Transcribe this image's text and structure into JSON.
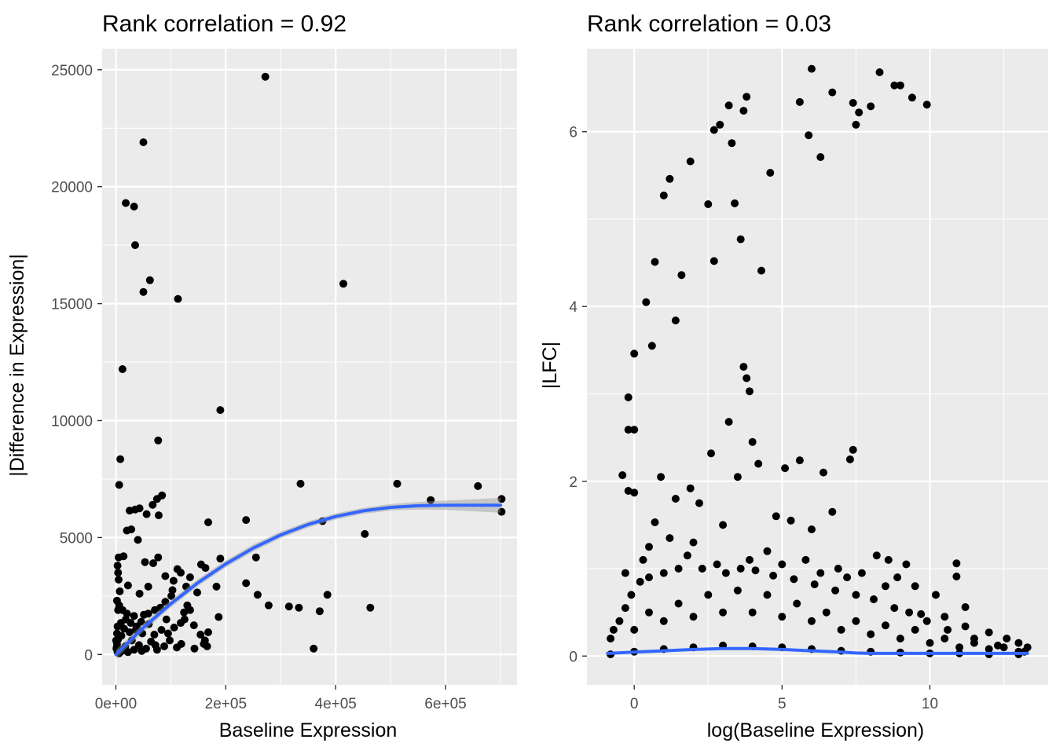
{
  "chart_data": [
    {
      "type": "scatter",
      "title": "Rank correlation = 0.92",
      "xlabel": "Baseline Expression",
      "ylabel": "|Difference in Expression|",
      "xlim": [
        -25000,
        730000
      ],
      "ylim": [
        -1300,
        25900
      ],
      "x_ticks": [
        0,
        200000,
        400000,
        600000
      ],
      "x_tick_labels": [
        "0e+00",
        "2e+05",
        "4e+05",
        "6e+05"
      ],
      "y_ticks": [
        0,
        5000,
        10000,
        15000,
        20000,
        25000
      ],
      "y_tick_labels": [
        "0",
        "5000",
        "10000",
        "15000",
        "20000",
        "25000"
      ],
      "grid": true,
      "colors": {
        "points": "#000000",
        "smooth": "#3366ff",
        "band": "#999999",
        "panel": "#ebebeb",
        "grid": "#ffffff"
      },
      "smooth": {
        "x": [
          0,
          50000,
          100000,
          150000,
          200000,
          250000,
          300000,
          350000,
          400000,
          450000,
          500000,
          550000,
          600000,
          650000,
          700000
        ],
        "y": [
          0,
          1150,
          2170,
          3080,
          3870,
          4550,
          5110,
          5560,
          5900,
          6140,
          6290,
          6360,
          6380,
          6380,
          6380
        ],
        "se": [
          200,
          180,
          160,
          150,
          150,
          150,
          140,
          130,
          130,
          130,
          140,
          160,
          200,
          260,
          320
        ]
      },
      "points": [
        [
          272000,
          24700
        ],
        [
          50000,
          21900
        ],
        [
          18000,
          19300
        ],
        [
          33000,
          19150
        ],
        [
          35000,
          17500
        ],
        [
          62000,
          16000
        ],
        [
          50000,
          15500
        ],
        [
          113000,
          15200
        ],
        [
          414000,
          15850
        ],
        [
          12000,
          12200
        ],
        [
          190000,
          10450
        ],
        [
          77000,
          9150
        ],
        [
          8000,
          8350
        ],
        [
          6000,
          7250
        ],
        [
          336000,
          7300
        ],
        [
          512000,
          7300
        ],
        [
          659000,
          7200
        ],
        [
          573000,
          6600
        ],
        [
          702000,
          6650
        ],
        [
          702000,
          6100
        ],
        [
          84000,
          6800
        ],
        [
          75000,
          6650
        ],
        [
          67000,
          6400
        ],
        [
          43000,
          6250
        ],
        [
          25000,
          6150
        ],
        [
          35000,
          6200
        ],
        [
          56000,
          6000
        ],
        [
          78000,
          5950
        ],
        [
          168000,
          5650
        ],
        [
          237000,
          5750
        ],
        [
          376000,
          5700
        ],
        [
          453000,
          5150
        ],
        [
          20000,
          5300
        ],
        [
          28000,
          5350
        ],
        [
          40000,
          4900
        ],
        [
          190000,
          4100
        ],
        [
          255000,
          4150
        ],
        [
          77000,
          4150
        ],
        [
          14000,
          4200
        ],
        [
          5000,
          4150
        ],
        [
          53000,
          3950
        ],
        [
          68000,
          3900
        ],
        [
          155000,
          3850
        ],
        [
          163000,
          3700
        ],
        [
          112000,
          3650
        ],
        [
          118000,
          3500
        ],
        [
          90000,
          3350
        ],
        [
          135000,
          3300
        ],
        [
          105000,
          3150
        ],
        [
          237000,
          3050
        ],
        [
          183000,
          2900
        ],
        [
          148000,
          2650
        ],
        [
          128000,
          2900
        ],
        [
          103000,
          2750
        ],
        [
          59000,
          2900
        ],
        [
          43000,
          2600
        ],
        [
          22000,
          2950
        ],
        [
          258000,
          2550
        ],
        [
          385000,
          2550
        ],
        [
          278000,
          2100
        ],
        [
          315000,
          2050
        ],
        [
          333000,
          2000
        ],
        [
          371000,
          1850
        ],
        [
          463000,
          2000
        ],
        [
          101000,
          2500
        ],
        [
          90000,
          2250
        ],
        [
          130000,
          2100
        ],
        [
          124000,
          1800
        ],
        [
          92000,
          1500
        ],
        [
          71000,
          1900
        ],
        [
          81000,
          2000
        ],
        [
          59000,
          1750
        ],
        [
          51000,
          1700
        ],
        [
          33000,
          1650
        ],
        [
          20000,
          1750
        ],
        [
          12000,
          1900
        ],
        [
          6000,
          2100
        ],
        [
          4000,
          1900
        ],
        [
          187000,
          1600
        ],
        [
          168000,
          950
        ],
        [
          162000,
          600
        ],
        [
          154000,
          850
        ],
        [
          160000,
          450
        ],
        [
          166000,
          350
        ],
        [
          143000,
          250
        ],
        [
          119000,
          450
        ],
        [
          111000,
          300
        ],
        [
          98000,
          600
        ],
        [
          106000,
          1150
        ],
        [
          142000,
          1250
        ],
        [
          118000,
          1350
        ],
        [
          125000,
          1500
        ],
        [
          135000,
          1900
        ],
        [
          360000,
          250
        ],
        [
          83000,
          1050
        ],
        [
          70000,
          850
        ],
        [
          48000,
          900
        ],
        [
          36000,
          1050
        ],
        [
          25000,
          950
        ],
        [
          15000,
          1100
        ],
        [
          10000,
          800
        ],
        [
          4000,
          650
        ],
        [
          2000,
          450
        ],
        [
          1000,
          250
        ],
        [
          8000,
          200
        ],
        [
          17000,
          350
        ],
        [
          29000,
          600
        ],
        [
          42000,
          400
        ],
        [
          55000,
          250
        ],
        [
          64000,
          550
        ],
        [
          88000,
          350
        ],
        [
          75000,
          200
        ],
        [
          60000,
          1300
        ],
        [
          46000,
          1400
        ],
        [
          38000,
          1200
        ],
        [
          27000,
          1350
        ],
        [
          18000,
          1500
        ],
        [
          9000,
          1350
        ],
        [
          3000,
          1200
        ],
        [
          2000,
          900
        ],
        [
          500,
          600
        ],
        [
          1500,
          300
        ],
        [
          3000,
          100
        ],
        [
          6000,
          50
        ],
        [
          11000,
          150
        ],
        [
          22000,
          100
        ],
        [
          33000,
          200
        ],
        [
          47000,
          150
        ],
        [
          72000,
          400
        ],
        [
          95000,
          900
        ],
        [
          3000,
          3800
        ],
        [
          5000,
          3200
        ],
        [
          7000,
          2700
        ],
        [
          2000,
          2300
        ],
        [
          4000,
          3500
        ]
      ]
    },
    {
      "type": "scatter",
      "title": "Rank correlation = 0.03",
      "xlabel": "log(Baseline Expression)",
      "ylabel": "|LFC|",
      "xlim": [
        -1.6,
        14.0
      ],
      "ylim": [
        -0.33,
        6.95
      ],
      "x_ticks": [
        0,
        5,
        10
      ],
      "x_tick_labels": [
        "0",
        "5",
        "10"
      ],
      "y_ticks": [
        0,
        2,
        4,
        6
      ],
      "y_tick_labels": [
        "0",
        "2",
        "4",
        "6"
      ],
      "grid": true,
      "colors": {
        "points": "#000000",
        "smooth": "#3366ff",
        "band": "#999999",
        "panel": "#ebebeb",
        "grid": "#ffffff"
      },
      "smooth": {
        "x": [
          -0.9,
          0,
          1,
          2,
          3,
          4,
          5,
          6,
          7,
          7.5,
          8,
          9,
          10,
          11,
          12,
          13.3
        ],
        "y": [
          0.03,
          0.045,
          0.06,
          0.075,
          0.085,
          0.085,
          0.075,
          0.06,
          0.045,
          0.035,
          0.03,
          0.03,
          0.03,
          0.03,
          0.03,
          0.03
        ],
        "se": [
          0.01,
          0.01,
          0.01,
          0.01,
          0.01,
          0.01,
          0.01,
          0.01,
          0.01,
          0.01,
          0.01,
          0.01,
          0.01,
          0.01,
          0.01,
          0.01
        ]
      },
      "points": [
        [
          6.0,
          6.72
        ],
        [
          8.3,
          6.68
        ],
        [
          8.8,
          6.53
        ],
        [
          9.0,
          6.53
        ],
        [
          9.4,
          6.39
        ],
        [
          9.9,
          6.31
        ],
        [
          6.7,
          6.45
        ],
        [
          7.4,
          6.33
        ],
        [
          7.6,
          6.22
        ],
        [
          8.0,
          6.29
        ],
        [
          7.5,
          6.08
        ],
        [
          5.9,
          5.96
        ],
        [
          6.3,
          5.71
        ],
        [
          5.6,
          6.34
        ],
        [
          3.8,
          6.4
        ],
        [
          3.7,
          6.24
        ],
        [
          3.2,
          6.3
        ],
        [
          2.9,
          6.08
        ],
        [
          2.7,
          6.02
        ],
        [
          3.3,
          5.87
        ],
        [
          4.6,
          5.53
        ],
        [
          1.9,
          5.66
        ],
        [
          1.2,
          5.46
        ],
        [
          1.0,
          5.27
        ],
        [
          2.5,
          5.17
        ],
        [
          3.4,
          5.18
        ],
        [
          3.6,
          4.77
        ],
        [
          2.7,
          4.52
        ],
        [
          1.6,
          4.36
        ],
        [
          0.7,
          4.51
        ],
        [
          4.3,
          4.41
        ],
        [
          0.4,
          4.05
        ],
        [
          1.4,
          3.84
        ],
        [
          0.6,
          3.55
        ],
        [
          0.0,
          3.46
        ],
        [
          3.7,
          3.31
        ],
        [
          3.8,
          3.18
        ],
        [
          3.9,
          3.03
        ],
        [
          -0.2,
          2.96
        ],
        [
          3.2,
          2.68
        ],
        [
          -0.2,
          2.59
        ],
        [
          0.0,
          2.59
        ],
        [
          4.0,
          2.45
        ],
        [
          -0.4,
          2.07
        ],
        [
          -0.2,
          1.89
        ],
        [
          0.0,
          1.87
        ],
        [
          0.9,
          2.05
        ],
        [
          7.4,
          2.36
        ],
        [
          7.3,
          2.25
        ],
        [
          6.7,
          1.65
        ],
        [
          2.6,
          2.32
        ],
        [
          5.6,
          2.24
        ],
        [
          5.1,
          2.15
        ],
        [
          6.4,
          2.1
        ],
        [
          4.2,
          2.2
        ],
        [
          3.5,
          2.05
        ],
        [
          1.9,
          1.92
        ],
        [
          1.4,
          1.8
        ],
        [
          2.2,
          1.75
        ],
        [
          4.8,
          1.6
        ],
        [
          5.3,
          1.55
        ],
        [
          6.0,
          1.45
        ],
        [
          0.7,
          1.53
        ],
        [
          3.0,
          1.5
        ],
        [
          8.2,
          1.15
        ],
        [
          8.6,
          1.1
        ],
        [
          9.2,
          1.05
        ],
        [
          10.9,
          1.06
        ],
        [
          10.9,
          0.91
        ],
        [
          11.2,
          0.56
        ],
        [
          9.7,
          0.48
        ],
        [
          10.5,
          0.45
        ],
        [
          11.2,
          0.34
        ],
        [
          12.0,
          0.27
        ],
        [
          12.6,
          0.2
        ],
        [
          13.0,
          0.15
        ],
        [
          13.3,
          0.1
        ],
        [
          0.5,
          1.25
        ],
        [
          1.2,
          1.35
        ],
        [
          2.0,
          1.3
        ],
        [
          4.5,
          1.2
        ],
        [
          5.8,
          1.1
        ],
        [
          6.9,
          1.0
        ],
        [
          7.7,
          0.95
        ],
        [
          8.9,
          0.9
        ],
        [
          9.5,
          0.8
        ],
        [
          10.2,
          0.7
        ],
        [
          0.3,
          1.1
        ],
        [
          1.8,
          1.15
        ],
        [
          2.8,
          1.05
        ],
        [
          3.9,
          1.1
        ],
        [
          5.0,
          1.05
        ],
        [
          6.3,
          0.95
        ],
        [
          7.2,
          0.9
        ],
        [
          8.5,
          0.8
        ],
        [
          -0.3,
          0.95
        ],
        [
          -0.8,
          0.2
        ],
        [
          -0.7,
          0.3
        ],
        [
          -0.5,
          0.4
        ],
        [
          -0.3,
          0.55
        ],
        [
          -0.1,
          0.7
        ],
        [
          0.2,
          0.85
        ],
        [
          0.5,
          0.9
        ],
        [
          1.0,
          0.95
        ],
        [
          1.5,
          1.0
        ],
        [
          2.3,
          1.0
        ],
        [
          3.1,
          0.95
        ],
        [
          3.6,
          1.0
        ],
        [
          4.1,
          0.98
        ],
        [
          4.7,
          0.92
        ],
        [
          5.4,
          0.88
        ],
        [
          6.1,
          0.82
        ],
        [
          6.8,
          0.75
        ],
        [
          7.5,
          0.7
        ],
        [
          8.1,
          0.65
        ],
        [
          8.8,
          0.55
        ],
        [
          9.3,
          0.5
        ],
        [
          9.9,
          0.4
        ],
        [
          10.6,
          0.3
        ],
        [
          11.5,
          0.2
        ],
        [
          12.3,
          0.12
        ],
        [
          13.0,
          0.05
        ],
        [
          -0.8,
          0.02
        ],
        [
          0.0,
          0.05
        ],
        [
          1.0,
          0.08
        ],
        [
          2.0,
          0.1
        ],
        [
          3.0,
          0.12
        ],
        [
          4.0,
          0.11
        ],
        [
          5.0,
          0.1
        ],
        [
          6.0,
          0.08
        ],
        [
          7.0,
          0.06
        ],
        [
          8.0,
          0.05
        ],
        [
          9.0,
          0.04
        ],
        [
          10.0,
          0.03
        ],
        [
          11.0,
          0.03
        ],
        [
          12.0,
          0.02
        ],
        [
          13.0,
          0.02
        ],
        [
          0.5,
          0.5
        ],
        [
          1.5,
          0.6
        ],
        [
          2.5,
          0.7
        ],
        [
          3.5,
          0.75
        ],
        [
          4.5,
          0.7
        ],
        [
          5.5,
          0.6
        ],
        [
          6.5,
          0.5
        ],
        [
          7.5,
          0.4
        ],
        [
          8.5,
          0.35
        ],
        [
          9.5,
          0.3
        ],
        [
          10.5,
          0.2
        ],
        [
          11.5,
          0.15
        ],
        [
          12.5,
          0.1
        ],
        [
          0.0,
          0.3
        ],
        [
          1.0,
          0.4
        ],
        [
          2.0,
          0.45
        ],
        [
          3.0,
          0.5
        ],
        [
          4.0,
          0.5
        ],
        [
          5.0,
          0.45
        ],
        [
          6.0,
          0.4
        ],
        [
          7.0,
          0.3
        ],
        [
          8.0,
          0.25
        ],
        [
          9.0,
          0.2
        ],
        [
          10.0,
          0.15
        ],
        [
          11.0,
          0.1
        ],
        [
          12.0,
          0.08
        ],
        [
          13.2,
          0.05
        ]
      ]
    }
  ]
}
